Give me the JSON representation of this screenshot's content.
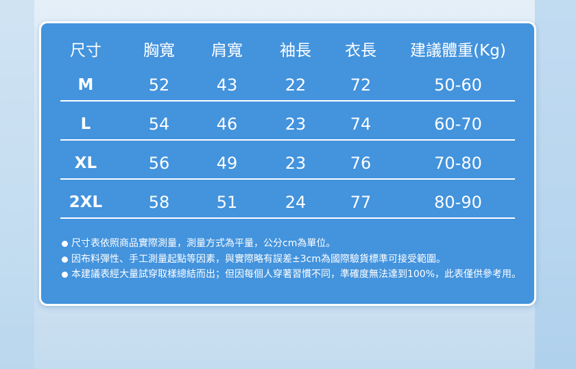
{
  "columns": [
    "尺寸",
    "胸寬",
    "肩寬",
    "袖長",
    "衣長",
    "建議體重(Kg)"
  ],
  "rows": [
    [
      "M",
      "52",
      "43",
      "22",
      "72",
      "50-60"
    ],
    [
      "L",
      "54",
      "46",
      "23",
      "74",
      "60-70"
    ],
    [
      "XL",
      "56",
      "49",
      "23",
      "76",
      "70-80"
    ],
    [
      "2XL",
      "58",
      "51",
      "24",
      "77",
      "80-90"
    ]
  ],
  "notes": [
    "尺寸表依照商品實際測量，測量方式為平量，公分cm為單位。",
    "因布料彈性、手工測量起點等因素，與實際略有誤差±3cm為國際驗貨標準可接受範圍。",
    "本建議表經大量試穿取樣總結而出；但因每個人穿著習慣不同，準確度無法達到100%，此表僅供參考用。"
  ],
  "colors": {
    "card": "#4393dd",
    "text": "#ffffff"
  }
}
